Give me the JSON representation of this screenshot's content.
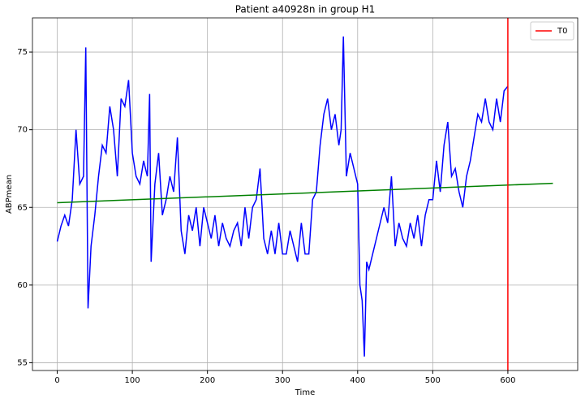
{
  "chart_data": {
    "type": "line",
    "title": "Patient a40928n in group H1",
    "x_label": "Time",
    "y_label": "ABPmean",
    "xlim": [
      -33,
      693
    ],
    "ylim": [
      54.5,
      77.2
    ],
    "xticks": [
      0,
      100,
      200,
      300,
      400,
      500,
      600
    ],
    "yticks": [
      55,
      60,
      65,
      70,
      75
    ],
    "grid": true,
    "legend": "upper right",
    "series": [
      {
        "color": "#0000ff",
        "x": [
          0,
          5,
          10,
          15,
          20,
          25,
          30,
          35,
          38,
          41,
          45,
          50,
          55,
          60,
          65,
          70,
          75,
          80,
          85,
          90,
          95,
          100,
          105,
          110,
          115,
          120,
          123,
          125,
          130,
          135,
          140,
          145,
          150,
          155,
          160,
          165,
          170,
          175,
          180,
          185,
          190,
          195,
          200,
          205,
          210,
          215,
          220,
          225,
          230,
          235,
          240,
          245,
          250,
          255,
          260,
          265,
          270,
          275,
          280,
          285,
          290,
          295,
          300,
          305,
          310,
          315,
          320,
          325,
          330,
          335,
          340,
          345,
          350,
          355,
          360,
          365,
          370,
          375,
          378,
          381,
          385,
          390,
          395,
          400,
          403,
          406,
          409,
          412,
          415,
          420,
          425,
          430,
          435,
          440,
          445,
          450,
          455,
          460,
          465,
          470,
          475,
          480,
          485,
          490,
          495,
          500,
          505,
          510,
          515,
          520,
          525,
          530,
          535,
          540,
          545,
          550,
          555,
          560,
          565,
          570,
          575,
          580,
          585,
          590,
          595,
          600
        ],
        "values": [
          62.8,
          63.8,
          64.5,
          63.8,
          65.5,
          70,
          66.5,
          67,
          75.3,
          58.5,
          62.5,
          64.5,
          67,
          69,
          68.5,
          71.5,
          70,
          67,
          72,
          71.5,
          73.2,
          68.5,
          67,
          66.5,
          68,
          67,
          72.3,
          61.5,
          66.5,
          68.5,
          64.5,
          65.5,
          67,
          66,
          69.5,
          63.5,
          62,
          64.5,
          63.5,
          65,
          62.5,
          65,
          64,
          63,
          64.5,
          62.5,
          64,
          63,
          62.5,
          63.5,
          64,
          62.5,
          65,
          63,
          65,
          65.5,
          67.5,
          63,
          62,
          63.5,
          62,
          64,
          62,
          62,
          63.5,
          62.5,
          61.5,
          64,
          62,
          62,
          65.5,
          66,
          69,
          71,
          72,
          70,
          71,
          69,
          70,
          76,
          67,
          68.5,
          67.5,
          66.5,
          60,
          59,
          55.4,
          61.5,
          61,
          62,
          63,
          64,
          65,
          64,
          67,
          62.5,
          64,
          63,
          62.5,
          64,
          63,
          64.5,
          62.5,
          64.5,
          65.5,
          65.5,
          68,
          66,
          69,
          70.5,
          67,
          67.5,
          66,
          65,
          67,
          68,
          69.5,
          71,
          70.5,
          72,
          70.5,
          70,
          72,
          70.5,
          72.5,
          72.8
        ]
      },
      {
        "color": "#008000",
        "x": [
          0,
          660
        ],
        "values": [
          65.3,
          66.55
        ]
      }
    ],
    "vlines": [
      {
        "name": "T0",
        "x": 600,
        "color": "#ff0000"
      }
    ]
  }
}
